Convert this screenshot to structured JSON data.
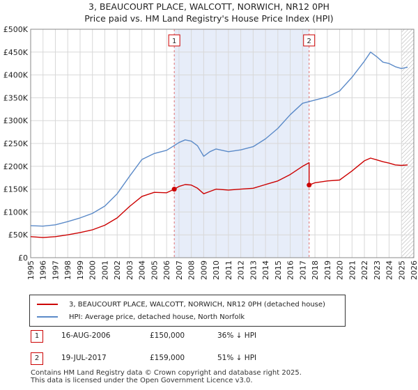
{
  "chart_data": {
    "type": "line",
    "title": "3, BEAUCOURT PLACE, WALCOTT, NORWICH, NR12 0PH",
    "subtitle": "Price paid vs. HM Land Registry's House Price Index (HPI)",
    "x_ticks": [
      "1995",
      "1996",
      "1997",
      "1998",
      "1999",
      "2000",
      "2001",
      "2002",
      "2003",
      "2004",
      "2005",
      "2006",
      "2007",
      "2008",
      "2009",
      "2010",
      "2011",
      "2012",
      "2013",
      "2014",
      "2015",
      "2016",
      "2017",
      "2018",
      "2019",
      "2020",
      "2021",
      "2022",
      "2023",
      "2024",
      "2025",
      "2026"
    ],
    "y_ticks": [
      "£0",
      "£50K",
      "£100K",
      "£150K",
      "£200K",
      "£250K",
      "£300K",
      "£350K",
      "£400K",
      "£450K",
      "£500K"
    ],
    "xlim": [
      1995,
      2026
    ],
    "ylim": [
      0,
      500000
    ],
    "grid": true,
    "hatched_from": 2025.0,
    "series": [
      {
        "name": "3, BEAUCOURT PLACE, WALCOTT, NORWICH, NR12 0PH (detached house)",
        "color": "#cc0000",
        "x": [
          1995,
          1996,
          1997,
          1998,
          1999,
          2000,
          2001,
          2002,
          2003,
          2004,
          2005,
          2006,
          2006.62,
          2006.62,
          2007,
          2007.5,
          2008,
          2008.5,
          2009,
          2009.5,
          2010,
          2011,
          2012,
          2013,
          2014,
          2015,
          2016,
          2017,
          2017.53,
          2017.53,
          2018,
          2019,
          2020,
          2021,
          2022,
          2022.5,
          2023,
          2023.5,
          2024,
          2024.5,
          2025,
          2025.5
        ],
        "values": [
          46000,
          44000,
          46000,
          50000,
          55000,
          61000,
          71000,
          87000,
          112000,
          134000,
          143000,
          142000,
          150000,
          150000,
          156000,
          160000,
          159000,
          152000,
          140000,
          145000,
          150000,
          148000,
          150000,
          152000,
          160000,
          168000,
          182000,
          200000,
          208000,
          159000,
          164000,
          168000,
          170000,
          190000,
          212000,
          218000,
          214000,
          210000,
          207000,
          203000,
          202000,
          203000
        ]
      },
      {
        "name": "HPI: Average price, detached house, North Norfolk",
        "color": "#5b8ac8",
        "x": [
          1995,
          1996,
          1997,
          1998,
          1999,
          2000,
          2001,
          2002,
          2003,
          2004,
          2005,
          2006,
          2007,
          2007.5,
          2008,
          2008.5,
          2009,
          2009.5,
          2010,
          2011,
          2012,
          2013,
          2014,
          2015,
          2016,
          2017,
          2018,
          2019,
          2020,
          2021,
          2022,
          2022.5,
          2023,
          2023.5,
          2024,
          2024.5,
          2025,
          2025.5
        ],
        "values": [
          70000,
          69000,
          72000,
          79000,
          87000,
          97000,
          113000,
          140000,
          178000,
          215000,
          228000,
          235000,
          252000,
          258000,
          255000,
          245000,
          222000,
          232000,
          238000,
          232000,
          236000,
          243000,
          260000,
          283000,
          313000,
          338000,
          345000,
          352000,
          365000,
          395000,
          430000,
          450000,
          440000,
          428000,
          425000,
          418000,
          414000,
          417000
        ]
      }
    ],
    "markers": [
      {
        "label": "1",
        "x": 2006.62,
        "y": 150000
      },
      {
        "label": "2",
        "x": 2017.53,
        "y": 159000
      }
    ],
    "shaded_range": [
      2006.62,
      2017.53
    ]
  },
  "legend": {
    "red_label": "3, BEAUCOURT PLACE, WALCOTT, NORWICH, NR12 0PH (detached house)",
    "blue_label": "HPI: Average price, detached house, North Norfolk"
  },
  "sales": [
    {
      "num": "1",
      "date": "16-AUG-2006",
      "price": "£150,000",
      "hpi": "36% ↓ HPI"
    },
    {
      "num": "2",
      "date": "19-JUL-2017",
      "price": "£159,000",
      "hpi": "51% ↓ HPI"
    }
  ],
  "footer": {
    "line1": "Contains HM Land Registry data © Crown copyright and database right 2025.",
    "line2": "This data is licensed under the Open Government Licence v3.0."
  }
}
